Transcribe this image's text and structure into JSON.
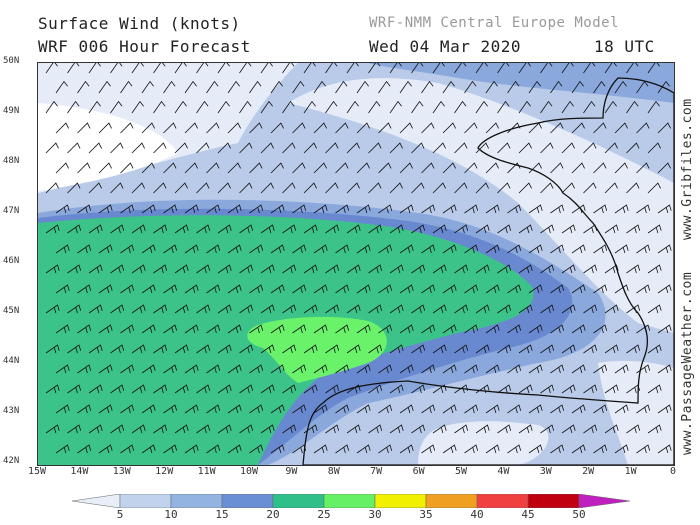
{
  "header": {
    "title_line1": "Surface Wind (knots)",
    "title_line2": "WRF 006 Hour Forecast",
    "model": "WRF-NMM Central Europe Model",
    "date": "Wed 04 Mar 2020",
    "time": "18 UTC"
  },
  "axes": {
    "lat_labels": [
      "50N",
      "49N",
      "48N",
      "47N",
      "46N",
      "45N",
      "44N",
      "43N",
      "42N"
    ],
    "lon_labels": [
      "15W",
      "14W",
      "13W",
      "12W",
      "11W",
      "10W",
      "9W",
      "8W",
      "7W",
      "6W",
      "5W",
      "4W",
      "3W",
      "2W",
      "1W",
      "0"
    ]
  },
  "side_text": {
    "gribfiles": "www.Gribfiles.com",
    "passageweather": "www.PassageWeather.com"
  },
  "colorbar": {
    "labels": [
      "5",
      "10",
      "15",
      "20",
      "25",
      "30",
      "35",
      "40",
      "45",
      "50"
    ],
    "colors": [
      "#e8eef8",
      "#c0d2ec",
      "#93b4e0",
      "#6a8fd3",
      "#2fc08a",
      "#66f066",
      "#f0f000",
      "#f0a020",
      "#f04040",
      "#c00010",
      "#c020c0"
    ]
  },
  "map_colors": {
    "white": "#ffffff",
    "c5": "#e6ecf7",
    "c10": "#b9cbe9",
    "c15": "#8aa8dc",
    "c20": "#6888d0",
    "c25": "#3cc389",
    "c30": "#6bf26b",
    "land": "#ffffff"
  }
}
